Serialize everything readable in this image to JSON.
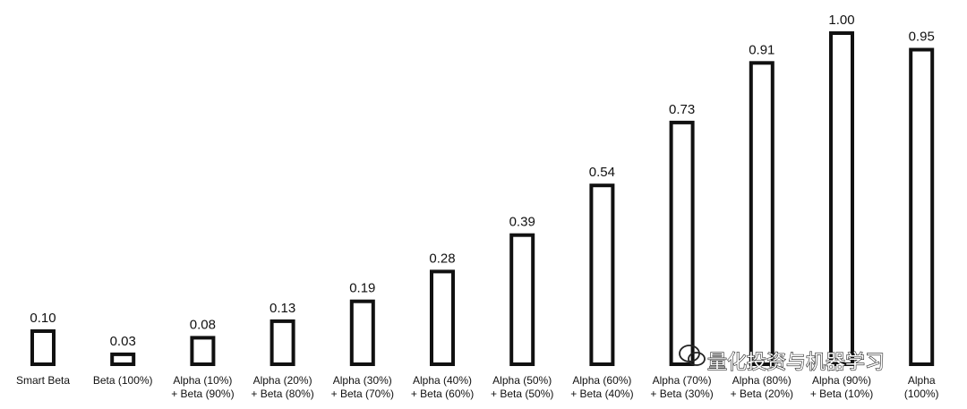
{
  "chart_data": {
    "type": "bar",
    "categories": [
      [
        "Smart Beta"
      ],
      [
        "Beta (100%)"
      ],
      [
        "Alpha (10%)",
        "+ Beta (90%)"
      ],
      [
        "Alpha (20%)",
        "+ Beta (80%)"
      ],
      [
        "Alpha (30%)",
        "+ Beta (70%)"
      ],
      [
        "Alpha (40%)",
        "+ Beta (60%)"
      ],
      [
        "Alpha (50%)",
        "+ Beta (50%)"
      ],
      [
        "Alpha (60%)",
        "+ Beta (40%)"
      ],
      [
        "Alpha (70%)",
        "+ Beta (30%)"
      ],
      [
        "Alpha (80%)",
        "+ Beta (20%)"
      ],
      [
        "Alpha (90%)",
        "+ Beta (10%)"
      ],
      [
        "Alpha",
        "(100%)"
      ]
    ],
    "values": [
      0.1,
      0.03,
      0.08,
      0.13,
      0.19,
      0.28,
      0.39,
      0.54,
      0.73,
      0.91,
      1.0,
      0.95
    ],
    "value_labels": [
      "0.10",
      "0.03",
      "0.08",
      "0.13",
      "0.19",
      "0.28",
      "0.39",
      "0.54",
      "0.73",
      "0.91",
      "1.00",
      "0.95"
    ],
    "ylim": [
      0,
      1.0
    ],
    "grid": false,
    "bar_fill": "#ffffff",
    "bar_stroke": "#111111"
  },
  "watermark": {
    "text": "量化投资与机器学习",
    "icon": "wechat-icon"
  }
}
